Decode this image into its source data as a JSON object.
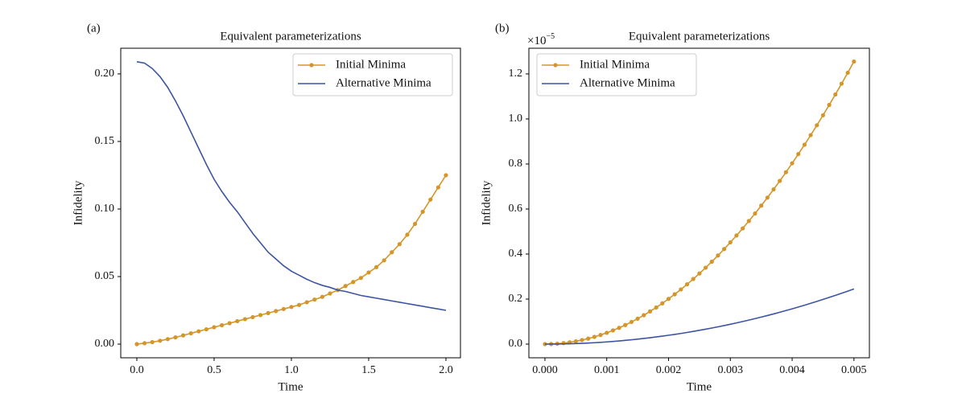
{
  "chart_data": [
    {
      "type": "line",
      "panel_label": "(a)",
      "title": "Equivalent parameterizations",
      "x_label": "Time",
      "y_label": "Infidelity",
      "x": [
        0,
        0.05,
        0.1,
        0.15,
        0.2,
        0.25,
        0.3,
        0.35,
        0.4,
        0.45,
        0.5,
        0.55,
        0.6,
        0.65,
        0.7,
        0.75,
        0.8,
        0.85,
        0.9,
        0.95,
        1.0,
        1.05,
        1.1,
        1.15,
        1.2,
        1.25,
        1.3,
        1.35,
        1.4,
        1.45,
        1.5,
        1.55,
        1.6,
        1.65,
        1.7,
        1.75,
        1.8,
        1.85,
        1.9,
        1.95,
        2.0
      ],
      "series": [
        {
          "name": "Initial Minima",
          "color": "#d4962a",
          "marker": true,
          "values": [
            0.0,
            0.0007,
            0.0015,
            0.0025,
            0.0037,
            0.005,
            0.0065,
            0.008,
            0.0095,
            0.011,
            0.0125,
            0.014,
            0.0155,
            0.017,
            0.0185,
            0.02,
            0.0215,
            0.023,
            0.0245,
            0.026,
            0.0275,
            0.029,
            0.031,
            0.033,
            0.035,
            0.0375,
            0.04,
            0.043,
            0.046,
            0.049,
            0.053,
            0.057,
            0.062,
            0.068,
            0.074,
            0.081,
            0.089,
            0.098,
            0.107,
            0.116,
            0.125
          ]
        },
        {
          "name": "Alternative Minima",
          "color": "#3d55a0",
          "marker": false,
          "values": [
            0.209,
            0.208,
            0.204,
            0.198,
            0.19,
            0.18,
            0.169,
            0.157,
            0.145,
            0.133,
            0.122,
            0.113,
            0.105,
            0.098,
            0.09,
            0.082,
            0.075,
            0.068,
            0.063,
            0.058,
            0.054,
            0.051,
            0.048,
            0.0455,
            0.0435,
            0.042,
            0.04,
            0.039,
            0.0375,
            0.036,
            0.035,
            0.034,
            0.033,
            0.032,
            0.031,
            0.03,
            0.029,
            0.028,
            0.027,
            0.026,
            0.025
          ]
        }
      ],
      "xlim": [
        -0.104,
        2.094
      ],
      "ylim": [
        -0.0101,
        0.219
      ],
      "xticks": [
        {
          "value": 0,
          "label": "0.0"
        },
        0.5,
        {
          "value": 1,
          "label": "1.0"
        },
        1.5,
        {
          "value": 2,
          "label": "2.0"
        }
      ],
      "yticks": [
        {
          "value": 0,
          "label": "0.00"
        },
        {
          "value": 0.05,
          "label": "0.05"
        },
        {
          "value": 0.1,
          "label": "0.10"
        },
        {
          "value": 0.15,
          "label": "0.15"
        },
        {
          "value": 0.2,
          "label": "0.20"
        }
      ],
      "legend": "upper right"
    },
    {
      "type": "line",
      "panel_label": "(b)",
      "title": "Equivalent parameterizations",
      "x_label": "Time",
      "y_label": "Infidelity",
      "y_offset_base": "×10",
      "y_offset_exp": "−5",
      "x": [
        0,
        0.0001,
        0.0002,
        0.0003,
        0.0004,
        0.0005,
        0.0006,
        0.0007,
        0.0008,
        0.0009,
        0.001,
        0.0011,
        0.0012,
        0.0013,
        0.0014,
        0.0015,
        0.0016,
        0.0017,
        0.0018,
        0.0019,
        0.002,
        0.0021,
        0.0022,
        0.0023,
        0.0024,
        0.0025,
        0.0026,
        0.0027,
        0.0028,
        0.0029,
        0.003,
        0.0031,
        0.0032,
        0.0033,
        0.0034,
        0.0035,
        0.0036,
        0.0037,
        0.0038,
        0.0039,
        0.004,
        0.0041,
        0.0042,
        0.0043,
        0.0044,
        0.0045,
        0.0046,
        0.0047,
        0.0048,
        0.0049,
        0.005
      ],
      "series": [
        {
          "name": "Initial Minima",
          "color": "#d4962a",
          "marker": true,
          "values": [
            0,
            0.0005,
            0.002,
            0.0045,
            0.008,
            0.0126,
            0.0181,
            0.0246,
            0.0321,
            0.0407,
            0.0502,
            0.0607,
            0.0723,
            0.0848,
            0.0984,
            0.113,
            0.1285,
            0.1451,
            0.1626,
            0.1812,
            0.2008,
            0.2214,
            0.243,
            0.2656,
            0.2892,
            0.3138,
            0.3394,
            0.366,
            0.3936,
            0.4222,
            0.4518,
            0.4824,
            0.514,
            0.5467,
            0.5803,
            0.615,
            0.6506,
            0.6872,
            0.7249,
            0.7635,
            0.8032,
            0.8439,
            0.8855,
            0.9282,
            0.9719,
            1.0166,
            1.0622,
            1.1089,
            1.1566,
            1.2053,
            1.255
          ]
        },
        {
          "name": "Alternative Minima",
          "color": "#3d55a0",
          "marker": false,
          "values": [
            0,
            0.0001,
            0.0004,
            0.0009,
            0.0016,
            0.0025,
            0.0035,
            0.0048,
            0.0063,
            0.0079,
            0.0098,
            0.0119,
            0.0141,
            0.0166,
            0.0192,
            0.0221,
            0.0251,
            0.0283,
            0.0318,
            0.0354,
            0.0392,
            0.0432,
            0.0474,
            0.0518,
            0.0564,
            0.0613,
            0.0662,
            0.0714,
            0.0768,
            0.0824,
            0.0882,
            0.0942,
            0.1004,
            0.1067,
            0.1133,
            0.12,
            0.127,
            0.1342,
            0.1415,
            0.1491,
            0.1568,
            0.1647,
            0.1729,
            0.1812,
            0.1897,
            0.1985,
            0.2074,
            0.2165,
            0.2258,
            0.2353,
            0.245
          ]
        }
      ],
      "xlim": [
        -0.00026,
        0.00525
      ],
      "ylim": [
        -0.0607,
        1.314
      ],
      "xticks": [
        {
          "value": 0,
          "label": "0.000"
        },
        {
          "value": 0.001,
          "label": "0.001"
        },
        {
          "value": 0.002,
          "label": "0.002"
        },
        {
          "value": 0.003,
          "label": "0.003"
        },
        {
          "value": 0.004,
          "label": "0.004"
        },
        {
          "value": 0.005,
          "label": "0.005"
        }
      ],
      "yticks": [
        {
          "value": 0,
          "label": "0.0"
        },
        0.2,
        0.4,
        0.6,
        0.8,
        {
          "value": 1,
          "label": "1.0"
        },
        1.2
      ],
      "legend": "upper left"
    }
  ]
}
